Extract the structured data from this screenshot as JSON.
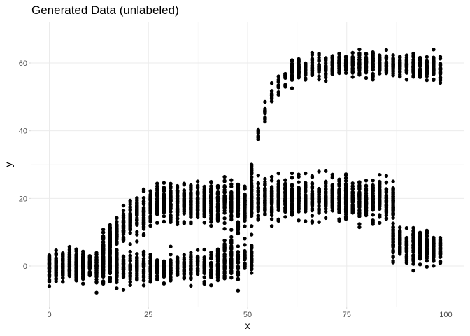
{
  "chart_data": {
    "type": "scatter",
    "title": "Generated Data (unlabeled)",
    "xlabel": "x",
    "ylabel": "y",
    "xlim": [
      -4.5,
      104.5
    ],
    "ylim": [
      -12,
      72
    ],
    "x_ticks": [
      0,
      25,
      50,
      75,
      100
    ],
    "y_ticks": [
      0,
      20,
      40,
      60
    ],
    "grid": true,
    "legend": "none",
    "point_color": "#000000",
    "x_step": 1.7,
    "x_range": [
      0,
      100
    ],
    "groups": [
      {
        "x_range": [
          0,
          17
        ],
        "y_spread": 5,
        "points_per_x": 45,
        "mean": [
          [
            0,
            0
          ],
          [
            17,
            0
          ]
        ]
      },
      {
        "x_range": [
          17,
          52
        ],
        "y_spread": 4.5,
        "points_per_x": 30,
        "mean": [
          [
            17,
            0
          ],
          [
            30,
            -1
          ],
          [
            40,
            0
          ],
          [
            48,
            1
          ],
          [
            52,
            3
          ]
        ]
      },
      {
        "x_range": [
          12,
          88
        ],
        "y_spread": 6,
        "points_per_x": 45,
        "mean": [
          [
            12,
            2
          ],
          [
            20,
            14
          ],
          [
            27,
            18
          ],
          [
            40,
            19
          ],
          [
            60,
            20
          ],
          [
            75,
            20
          ],
          [
            85,
            19
          ],
          [
            88,
            17
          ]
        ]
      },
      {
        "x_range": [
          86,
          100
        ],
        "y_spread": 5,
        "points_per_x": 45,
        "mean": [
          [
            86,
            7
          ],
          [
            100,
            5
          ]
        ]
      },
      {
        "x_range": [
          42,
          64
        ],
        "y_spread": 3,
        "points_per_x": 12,
        "mean": [
          [
            42,
            3
          ],
          [
            46,
            7
          ],
          [
            49,
            15
          ],
          [
            51,
            28
          ],
          [
            53,
            40
          ],
          [
            55,
            48
          ],
          [
            58,
            54
          ],
          [
            61,
            57
          ],
          [
            64,
            59
          ]
        ]
      },
      {
        "x_range": [
          60,
          100
        ],
        "y_spread": 3.5,
        "points_per_x": 28,
        "mean": [
          [
            60,
            58
          ],
          [
            70,
            59
          ],
          [
            80,
            60
          ],
          [
            90,
            59
          ],
          [
            100,
            58
          ]
        ]
      }
    ]
  }
}
